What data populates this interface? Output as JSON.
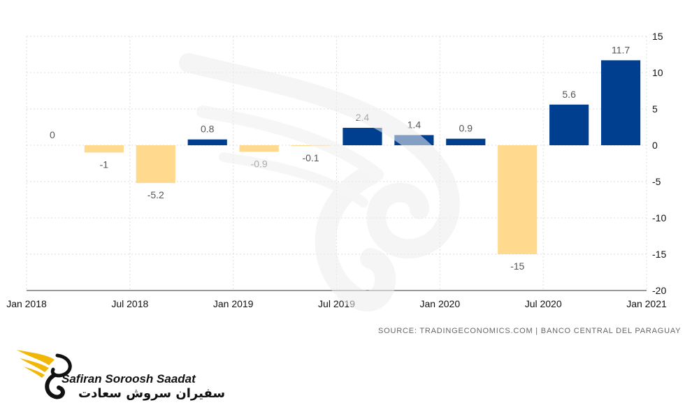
{
  "chart_data": {
    "type": "bar",
    "categories": [
      "Q1 2018",
      "Q2 2018",
      "Q3 2018",
      "Q4 2018",
      "Q1 2019",
      "Q2 2019",
      "Q3 2019",
      "Q4 2019",
      "Q1 2020",
      "Q2 2020",
      "Q3 2020",
      "Q4 2020"
    ],
    "values": [
      0,
      -1,
      -5.2,
      0.8,
      -0.9,
      -0.1,
      2.4,
      1.4,
      0.9,
      -15,
      5.6,
      11.7
    ],
    "data_labels": [
      "0",
      "-1",
      "-5.2",
      "0.8",
      "-0.9",
      "-0.1",
      "2.4",
      "1.4",
      "0.9",
      "-15",
      "5.6",
      "11.7"
    ],
    "x_tick_labels": [
      "Jan 2018",
      "Jul 2018",
      "Jan 2019",
      "Jul 2019",
      "Jan 2020",
      "Jul 2020",
      "Jan 2021"
    ],
    "y_ticks": [
      15,
      10,
      5,
      0,
      -5,
      -10,
      -15,
      -20
    ],
    "ylim": [
      -20,
      15
    ],
    "y_axis_side": "right",
    "grid": true,
    "colors": {
      "positive": "#003F8F",
      "negative": "#FFD98E",
      "grid": "#DDDDDD"
    }
  },
  "source": "SOURCE: TRADINGECONOMICS.COM  |  BANCO CENTRAL DEL PARAGUAY",
  "logo": {
    "name_en": "Safiran Soroosh Saadat",
    "name_fa": "سفیران سروش سعادت",
    "accent_color": "#F2B705",
    "icon": "winged-s-logo-icon"
  }
}
